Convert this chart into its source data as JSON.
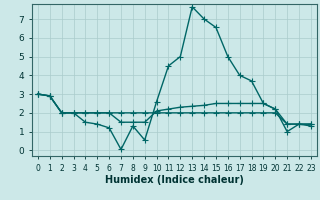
{
  "xlabel": "Humidex (Indice chaleur)",
  "background_color": "#cce8e8",
  "grid_color": "#aacccc",
  "line_color": "#006666",
  "xlim": [
    -0.5,
    23.5
  ],
  "ylim": [
    -0.3,
    7.8
  ],
  "xticks": [
    0,
    1,
    2,
    3,
    4,
    5,
    6,
    7,
    8,
    9,
    10,
    11,
    12,
    13,
    14,
    15,
    16,
    17,
    18,
    19,
    20,
    21,
    22,
    23
  ],
  "yticks": [
    0,
    1,
    2,
    3,
    4,
    5,
    6,
    7
  ],
  "line1_x": [
    0,
    1,
    2,
    3,
    4,
    5,
    6,
    7,
    8,
    9,
    10,
    11,
    12,
    13,
    14,
    15,
    16,
    17,
    18,
    19,
    20,
    21,
    22,
    23
  ],
  "line1_y": [
    3.0,
    2.9,
    2.0,
    2.0,
    1.5,
    1.4,
    1.2,
    0.05,
    1.3,
    0.55,
    2.6,
    4.5,
    5.0,
    7.65,
    7.0,
    6.55,
    5.0,
    4.0,
    3.7,
    2.5,
    2.2,
    1.0,
    1.4,
    1.3
  ],
  "line2_x": [
    0,
    1,
    2,
    3,
    4,
    5,
    6,
    7,
    8,
    9,
    10,
    11,
    12,
    13,
    14,
    15,
    16,
    17,
    18,
    19,
    20,
    21,
    22,
    23
  ],
  "line2_y": [
    3.0,
    2.9,
    2.0,
    2.0,
    2.0,
    2.0,
    2.0,
    1.5,
    1.5,
    1.5,
    2.1,
    2.2,
    2.3,
    2.35,
    2.4,
    2.5,
    2.5,
    2.5,
    2.5,
    2.5,
    2.2,
    1.4,
    1.4,
    1.4
  ],
  "line3_x": [
    0,
    1,
    2,
    3,
    4,
    5,
    6,
    7,
    8,
    9,
    10,
    11,
    12,
    13,
    14,
    15,
    16,
    17,
    18,
    19,
    20,
    21,
    22,
    23
  ],
  "line3_y": [
    3.0,
    2.9,
    2.0,
    2.0,
    2.0,
    2.0,
    2.0,
    2.0,
    2.0,
    2.0,
    2.0,
    2.0,
    2.0,
    2.0,
    2.0,
    2.0,
    2.0,
    2.0,
    2.0,
    2.0,
    2.0,
    1.4,
    1.4,
    1.4
  ],
  "marker": "+",
  "markersize": 4,
  "linewidth": 1.0
}
